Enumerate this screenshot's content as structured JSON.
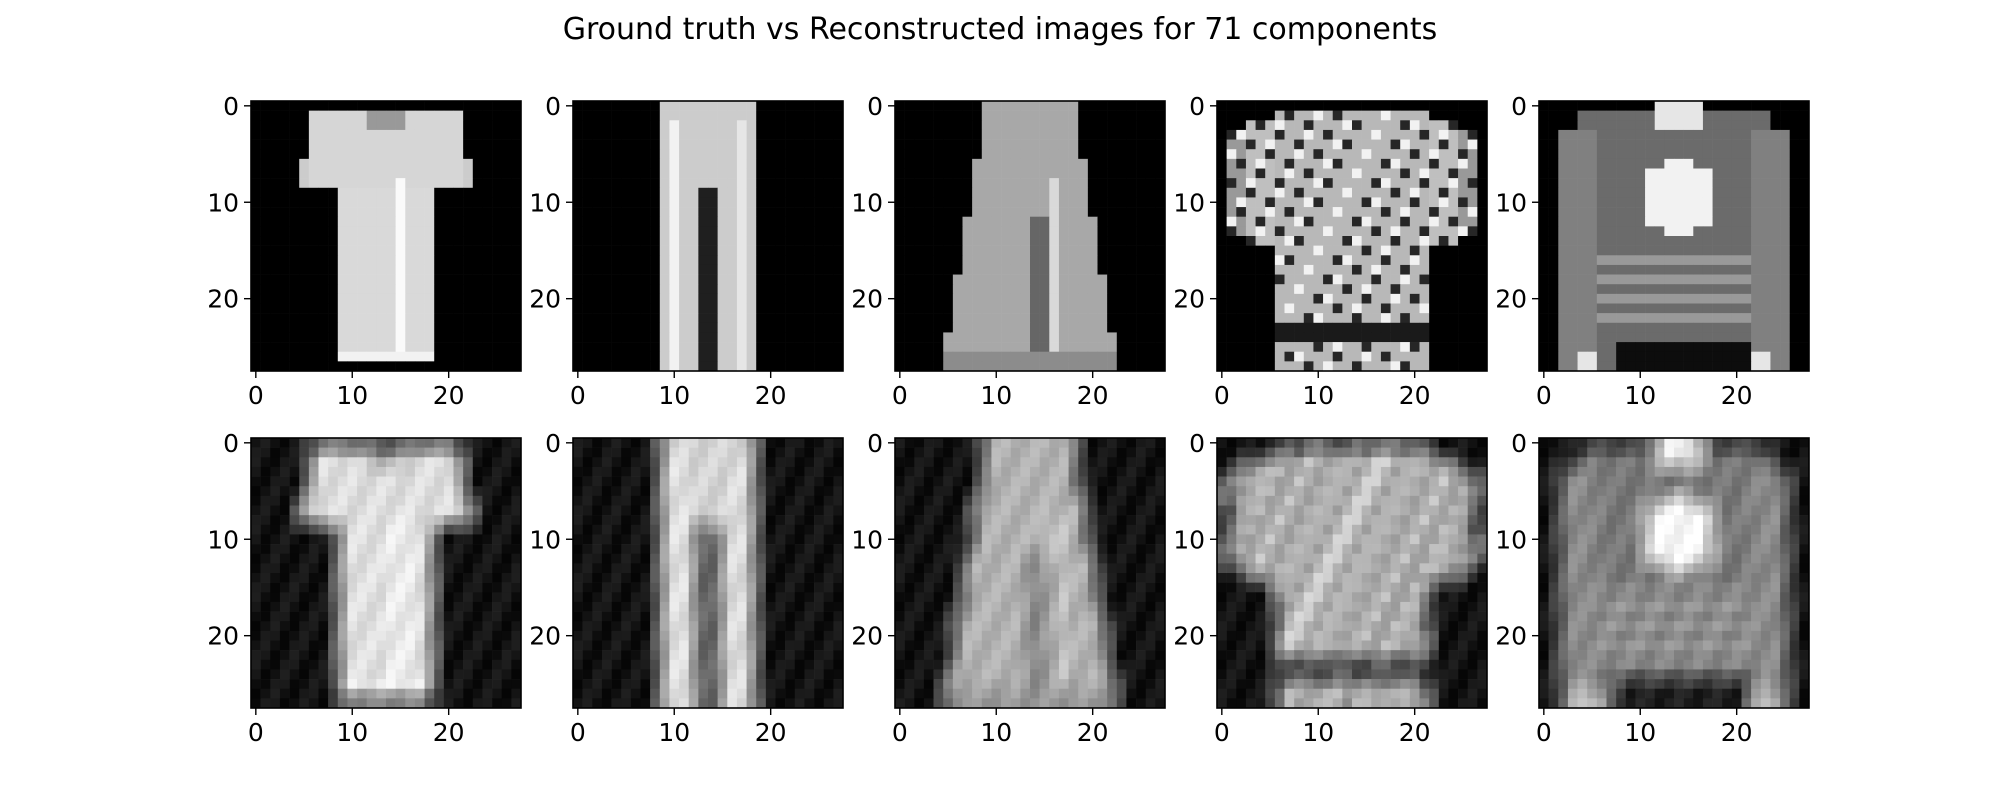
{
  "chart_data": {
    "type": "heatmap",
    "title": "Ground truth vs Reconstructed images for 71 components",
    "rows": [
      "ground_truth",
      "reconstructed"
    ],
    "columns": [
      {
        "item": "t-shirt",
        "icon": "tshirt-image"
      },
      {
        "item": "trouser",
        "icon": "trouser-image"
      },
      {
        "item": "trouser",
        "icon": "trouser-image"
      },
      {
        "item": "patterned-top",
        "icon": "pullover-image"
      },
      {
        "item": "pullover",
        "icon": "pullover-image"
      }
    ],
    "image_size": [
      28,
      28
    ],
    "colormap": "gray",
    "x_ticks": [
      "0",
      "10",
      "20"
    ],
    "y_ticks": [
      "0",
      "10",
      "20"
    ],
    "xlim": [
      -0.5,
      27.5
    ],
    "ylim": [
      27.5,
      -0.5
    ],
    "grid": false
  }
}
